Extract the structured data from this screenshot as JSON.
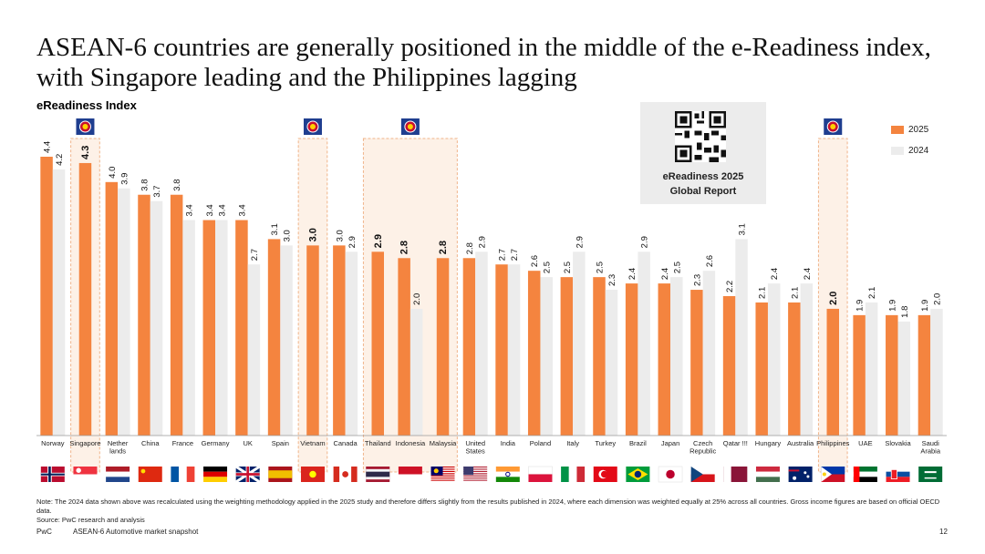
{
  "title": "ASEAN-6 countries are generally positioned in the middle of the e-Readiness index, with Singapore leading and the Philippines lagging",
  "subtitle": "eReadiness Index",
  "report_box": {
    "line1": "eReadiness 2025",
    "line2": "Global Report"
  },
  "note": "Note: The 2024 data shown above was recalculated using the weighting methodology applied in the 2025 study and therefore differs slightly from the results published in 2024, where each dimension was weighted equally at 25% across all countries. Gross income figures are based on official OECD data.",
  "source": "Source: PwC research and analysis",
  "footer": {
    "brand": "PwC",
    "doc": "ASEAN-6 Automotive market snapshot",
    "page": "12"
  },
  "colors": {
    "series_2025": "#f4843f",
    "series_2024": "#ececec",
    "highlight_fill": "#fdf1e7",
    "highlight_border": "#f0b48a",
    "asean_flag": "#1f3e8f"
  },
  "chart_data": {
    "type": "bar",
    "title": "eReadiness Index",
    "categories": [
      "Norway",
      "Singapore",
      "Netherlands",
      "China",
      "France",
      "Germany",
      "UK",
      "Spain",
      "Vietnam",
      "Canada",
      "Thailand",
      "Indonesia",
      "Malaysia",
      "United States",
      "India",
      "Poland",
      "Italy",
      "Turkey",
      "Brazil",
      "Japan",
      "Czech Republic",
      "Qatar",
      "Hungary",
      "Australia",
      "Philippines",
      "UAE",
      "Slovakia",
      "Saudi Arabia"
    ],
    "category_labels": [
      "Norway",
      "Singapore",
      "Nether lands",
      "China",
      "France",
      "Germany",
      "UK",
      "Spain",
      "Vietnam",
      "Canada",
      "Thailand",
      "Indonesia",
      "Malaysia",
      "United States",
      "India",
      "Poland",
      "Italy",
      "Turkey",
      "Brazil",
      "Japan",
      "Czech Republic",
      "Qatar !!!",
      "Hungary",
      "Australia",
      "Philippines",
      "UAE",
      "Slovakia",
      "Saudi Arabia"
    ],
    "series": [
      {
        "name": "2025",
        "values": [
          4.4,
          4.3,
          4.0,
          3.8,
          3.8,
          3.4,
          3.4,
          3.1,
          3.0,
          3.0,
          2.9,
          2.8,
          2.8,
          2.8,
          2.7,
          2.6,
          2.5,
          2.5,
          2.4,
          2.4,
          2.3,
          2.2,
          2.1,
          2.1,
          2.0,
          1.9,
          1.9,
          1.9
        ]
      },
      {
        "name": "2024",
        "values": [
          4.2,
          null,
          3.9,
          3.7,
          3.4,
          3.4,
          2.7,
          3.0,
          null,
          2.9,
          null,
          2.0,
          null,
          2.9,
          2.7,
          2.5,
          2.9,
          2.3,
          2.9,
          2.5,
          2.6,
          3.1,
          2.4,
          2.4,
          null,
          2.1,
          1.8,
          2.0
        ]
      }
    ],
    "highlighted": [
      "Singapore",
      "Vietnam",
      "Thailand",
      "Indonesia",
      "Malaysia",
      "Philippines"
    ],
    "asean_emblem_groups": [
      [
        "Singapore"
      ],
      [
        "Vietnam"
      ],
      [
        "Thailand",
        "Indonesia",
        "Malaysia"
      ],
      [
        "Philippines"
      ]
    ],
    "legend": [
      "2025",
      "2024"
    ],
    "legend_position": "top-right",
    "flags": [
      "norway-flag",
      "singapore-flag",
      "netherlands-flag",
      "china-flag",
      "france-flag",
      "germany-flag",
      "uk-flag",
      "spain-flag",
      "vietnam-flag",
      "canada-flag",
      "thailand-flag",
      "indonesia-flag",
      "malaysia-flag",
      "usa-flag",
      "india-flag",
      "poland-flag",
      "italy-flag",
      "turkey-flag",
      "brazil-flag",
      "japan-flag",
      "czech-flag",
      "qatar-flag",
      "hungary-flag",
      "australia-flag",
      "philippines-flag",
      "uae-flag",
      "slovakia-flag",
      "saudi-arabia-flag"
    ],
    "ylim": [
      0,
      5
    ],
    "grid": false
  }
}
